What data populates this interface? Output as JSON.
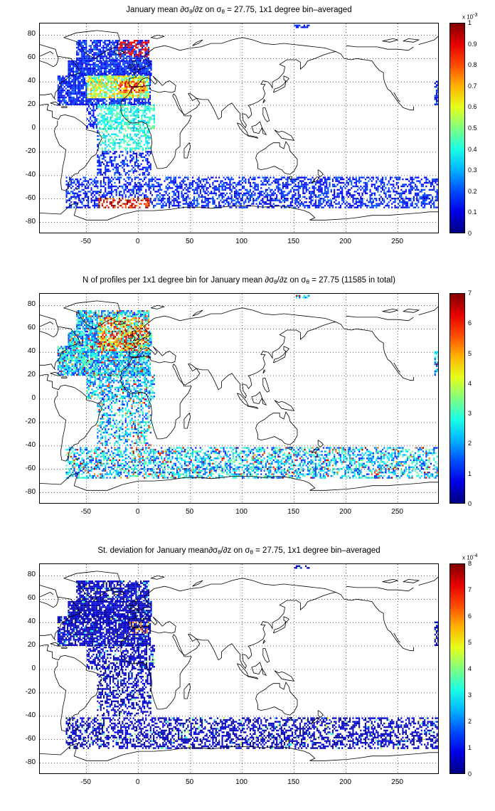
{
  "panels": [
    {
      "id": "mean",
      "title_prefix": "January mean ",
      "title_deriv": "∂σ",
      "title_deriv_sub": "θ",
      "title_deriv_tail": "/∂z on σ",
      "title_sigma_sub": "θ",
      "title_suffix": " = 27.75, 1x1 degree bin–averaged",
      "colorbar": {
        "ticks": [
          "0",
          "0.1",
          "0.2",
          "0.3",
          "0.4",
          "0.5",
          "0.6",
          "0.7",
          "0.8",
          "0.9",
          "1"
        ],
        "min": 0,
        "max": 1,
        "exponent_base": "x 10",
        "exponent": "-3"
      }
    },
    {
      "id": "count",
      "title_prefix": "N of profiles per 1x1 degree bin for January mean ",
      "title_deriv": "∂σ",
      "title_deriv_sub": "θ",
      "title_deriv_tail": "/∂z on σ",
      "title_sigma_sub": "θ",
      "title_suffix": " = 27.75 (11585 in total)",
      "colorbar": {
        "ticks": [
          "0",
          "1",
          "2",
          "3",
          "4",
          "5",
          "6",
          "7"
        ],
        "min": 0,
        "max": 7,
        "exponent_base": "",
        "exponent": ""
      }
    },
    {
      "id": "std",
      "title_prefix": "St. deviation for January mean",
      "title_deriv": "∂σ",
      "title_deriv_sub": "θ",
      "title_deriv_tail": "/∂z on σ",
      "title_sigma_sub": "θ",
      "title_suffix": " = 27.75, 1x1 degree bin–averaged",
      "colorbar": {
        "ticks": [
          "0",
          "1",
          "2",
          "3",
          "4",
          "5",
          "6",
          "7",
          "8"
        ],
        "min": 0,
        "max": 8,
        "exponent_base": "x 10",
        "exponent": "-4"
      }
    }
  ],
  "axes": {
    "x_ticks": [
      "-50",
      "0",
      "50",
      "100",
      "150",
      "200",
      "250"
    ],
    "x_values": [
      -50,
      0,
      50,
      100,
      150,
      200,
      250
    ],
    "y_ticks": [
      "80",
      "60",
      "40",
      "20",
      "0",
      "-20",
      "-40",
      "-60",
      "-80"
    ],
    "y_values": [
      80,
      60,
      40,
      20,
      0,
      -20,
      -40,
      -60,
      -80
    ],
    "xlim": [
      -95,
      290
    ],
    "ylim": [
      -90,
      90
    ],
    "grid": "dotted"
  },
  "colormap": "jet",
  "coastline_color": "#000000"
}
